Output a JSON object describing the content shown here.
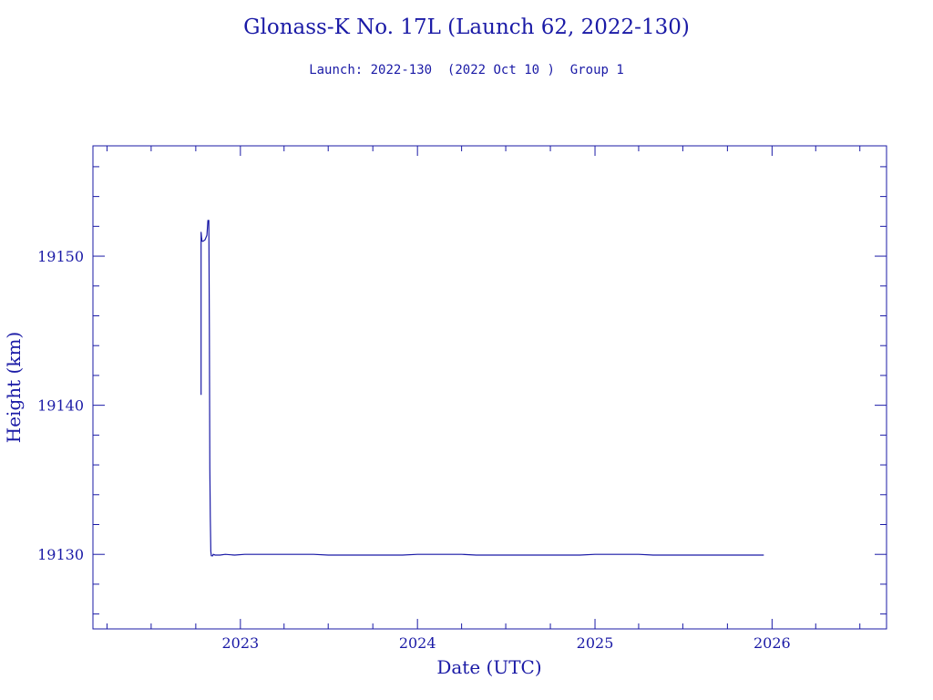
{
  "chart_data": {
    "type": "line",
    "title": "Glonass-K No. 17L (Launch 62, 2022-130)",
    "subtitle": "Launch: 2022-130  (2022 Oct 10 )  Group 1",
    "xlabel": "Date (UTC)",
    "ylabel": "Height (km)",
    "xlim": [
      "2022-03-03",
      "2026-08-25"
    ],
    "ylim": [
      19125,
      19157.4
    ],
    "x_ticks": [
      "2023",
      "2024",
      "2025",
      "2026"
    ],
    "y_ticks": [
      "19130",
      "19140",
      "19150"
    ],
    "grid": false,
    "legend": "none",
    "color": "#1a1aa6",
    "series": [
      {
        "x": [
          "2022-10-12",
          "2022-10-12",
          "2022-10-13",
          "2022-10-14",
          "2022-10-16",
          "2022-10-20",
          "2022-10-24",
          "2022-10-26",
          "2022-10-28",
          "2022-10-29",
          "2022-10-30",
          "2022-10-31",
          "2022-11-01",
          "2022-11-02",
          "2022-11-03",
          "2022-11-04",
          "2022-11-05",
          "2022-11-06",
          "2022-11-10",
          "2022-11-20",
          "2022-12-01",
          "2022-12-20",
          "2023-01-10",
          "2023-02-01",
          "2023-03-01",
          "2023-04-01",
          "2023-05-01",
          "2023-06-01",
          "2023-07-01",
          "2023-08-01",
          "2023-09-01",
          "2023-10-01",
          "2023-11-01",
          "2023-12-01",
          "2024-01-01",
          "2024-02-01",
          "2024-03-01",
          "2024-04-01",
          "2024-05-01",
          "2024-06-01",
          "2024-07-01",
          "2024-08-01",
          "2024-09-01",
          "2024-10-01",
          "2024-11-01",
          "2024-12-01",
          "2025-01-01",
          "2025-02-01",
          "2025-03-01",
          "2025-04-01",
          "2025-05-01",
          "2025-06-01",
          "2025-07-01",
          "2025-08-01",
          "2025-09-01",
          "2025-10-01",
          "2025-11-01",
          "2025-12-01",
          "2025-12-15"
        ],
        "values": [
          19140.7,
          19151.6,
          19151.2,
          19151.0,
          19151.0,
          19151.1,
          19151.4,
          19152.4,
          19152.4,
          19145.0,
          19135.8,
          19132.5,
          19130.2,
          19129.9,
          19129.9,
          19129.9,
          19129.9,
          19130.0,
          19129.95,
          19129.95,
          19130.0,
          19129.95,
          19130.0,
          19130.0,
          19130.0,
          19130.0,
          19130.0,
          19130.0,
          19129.95,
          19129.95,
          19129.95,
          19129.95,
          19129.95,
          19129.95,
          19130.0,
          19130.0,
          19130.0,
          19130.0,
          19129.95,
          19129.95,
          19129.95,
          19129.95,
          19129.95,
          19129.95,
          19129.95,
          19129.95,
          19130.0,
          19130.0,
          19130.0,
          19130.0,
          19129.95,
          19129.95,
          19129.95,
          19129.95,
          19129.95,
          19129.95,
          19129.95,
          19129.95,
          19129.95
        ]
      }
    ]
  }
}
